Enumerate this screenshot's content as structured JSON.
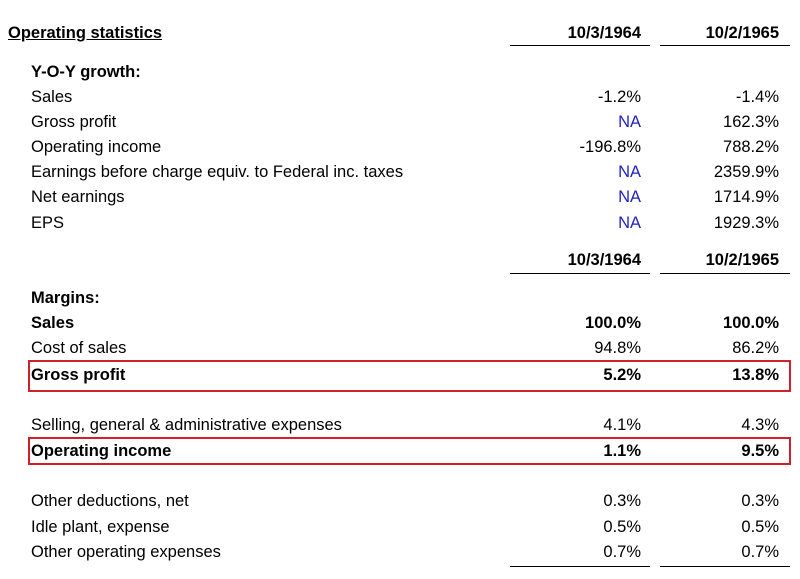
{
  "header": {
    "title": "Operating statistics",
    "columns": [
      "10/3/1964",
      "10/2/1965"
    ]
  },
  "growth": {
    "title": "Y-O-Y growth:",
    "rows": [
      {
        "label": "Sales",
        "values": [
          "-1.2%",
          "-1.4%"
        ]
      },
      {
        "label": "Gross profit",
        "values": [
          "NA",
          "162.3%"
        ]
      },
      {
        "label": "Operating income",
        "values": [
          "-196.8%",
          "788.2%"
        ]
      },
      {
        "label": "Earnings before charge equiv. to Federal inc. taxes",
        "values": [
          "NA",
          "2359.9%"
        ]
      },
      {
        "label": "Net earnings",
        "values": [
          "NA",
          "1714.9%"
        ]
      },
      {
        "label": "EPS",
        "values": [
          "NA",
          "1929.3%"
        ]
      }
    ]
  },
  "margins_header": {
    "columns": [
      "10/3/1964",
      "10/2/1965"
    ]
  },
  "margins": {
    "title": "Margins:",
    "rows": [
      {
        "label": "Sales",
        "values": [
          "100.0%",
          "100.0%"
        ]
      },
      {
        "label": "Cost of sales",
        "values": [
          "94.8%",
          "86.2%"
        ]
      },
      {
        "label": "Gross profit",
        "values": [
          "5.2%",
          "13.8%"
        ]
      },
      {
        "label": "Selling, general & administrative expenses",
        "values": [
          "4.1%",
          "4.3%"
        ]
      },
      {
        "label": "Operating income",
        "values": [
          "1.1%",
          "9.5%"
        ]
      },
      {
        "label": "Other deductions, net",
        "values": [
          "0.3%",
          "0.3%"
        ]
      },
      {
        "label": "Idle plant, expense",
        "values": [
          "0.5%",
          "0.5%"
        ]
      },
      {
        "label": "Other operating expenses",
        "values": [
          "0.7%",
          "0.7%"
        ]
      }
    ]
  }
}
